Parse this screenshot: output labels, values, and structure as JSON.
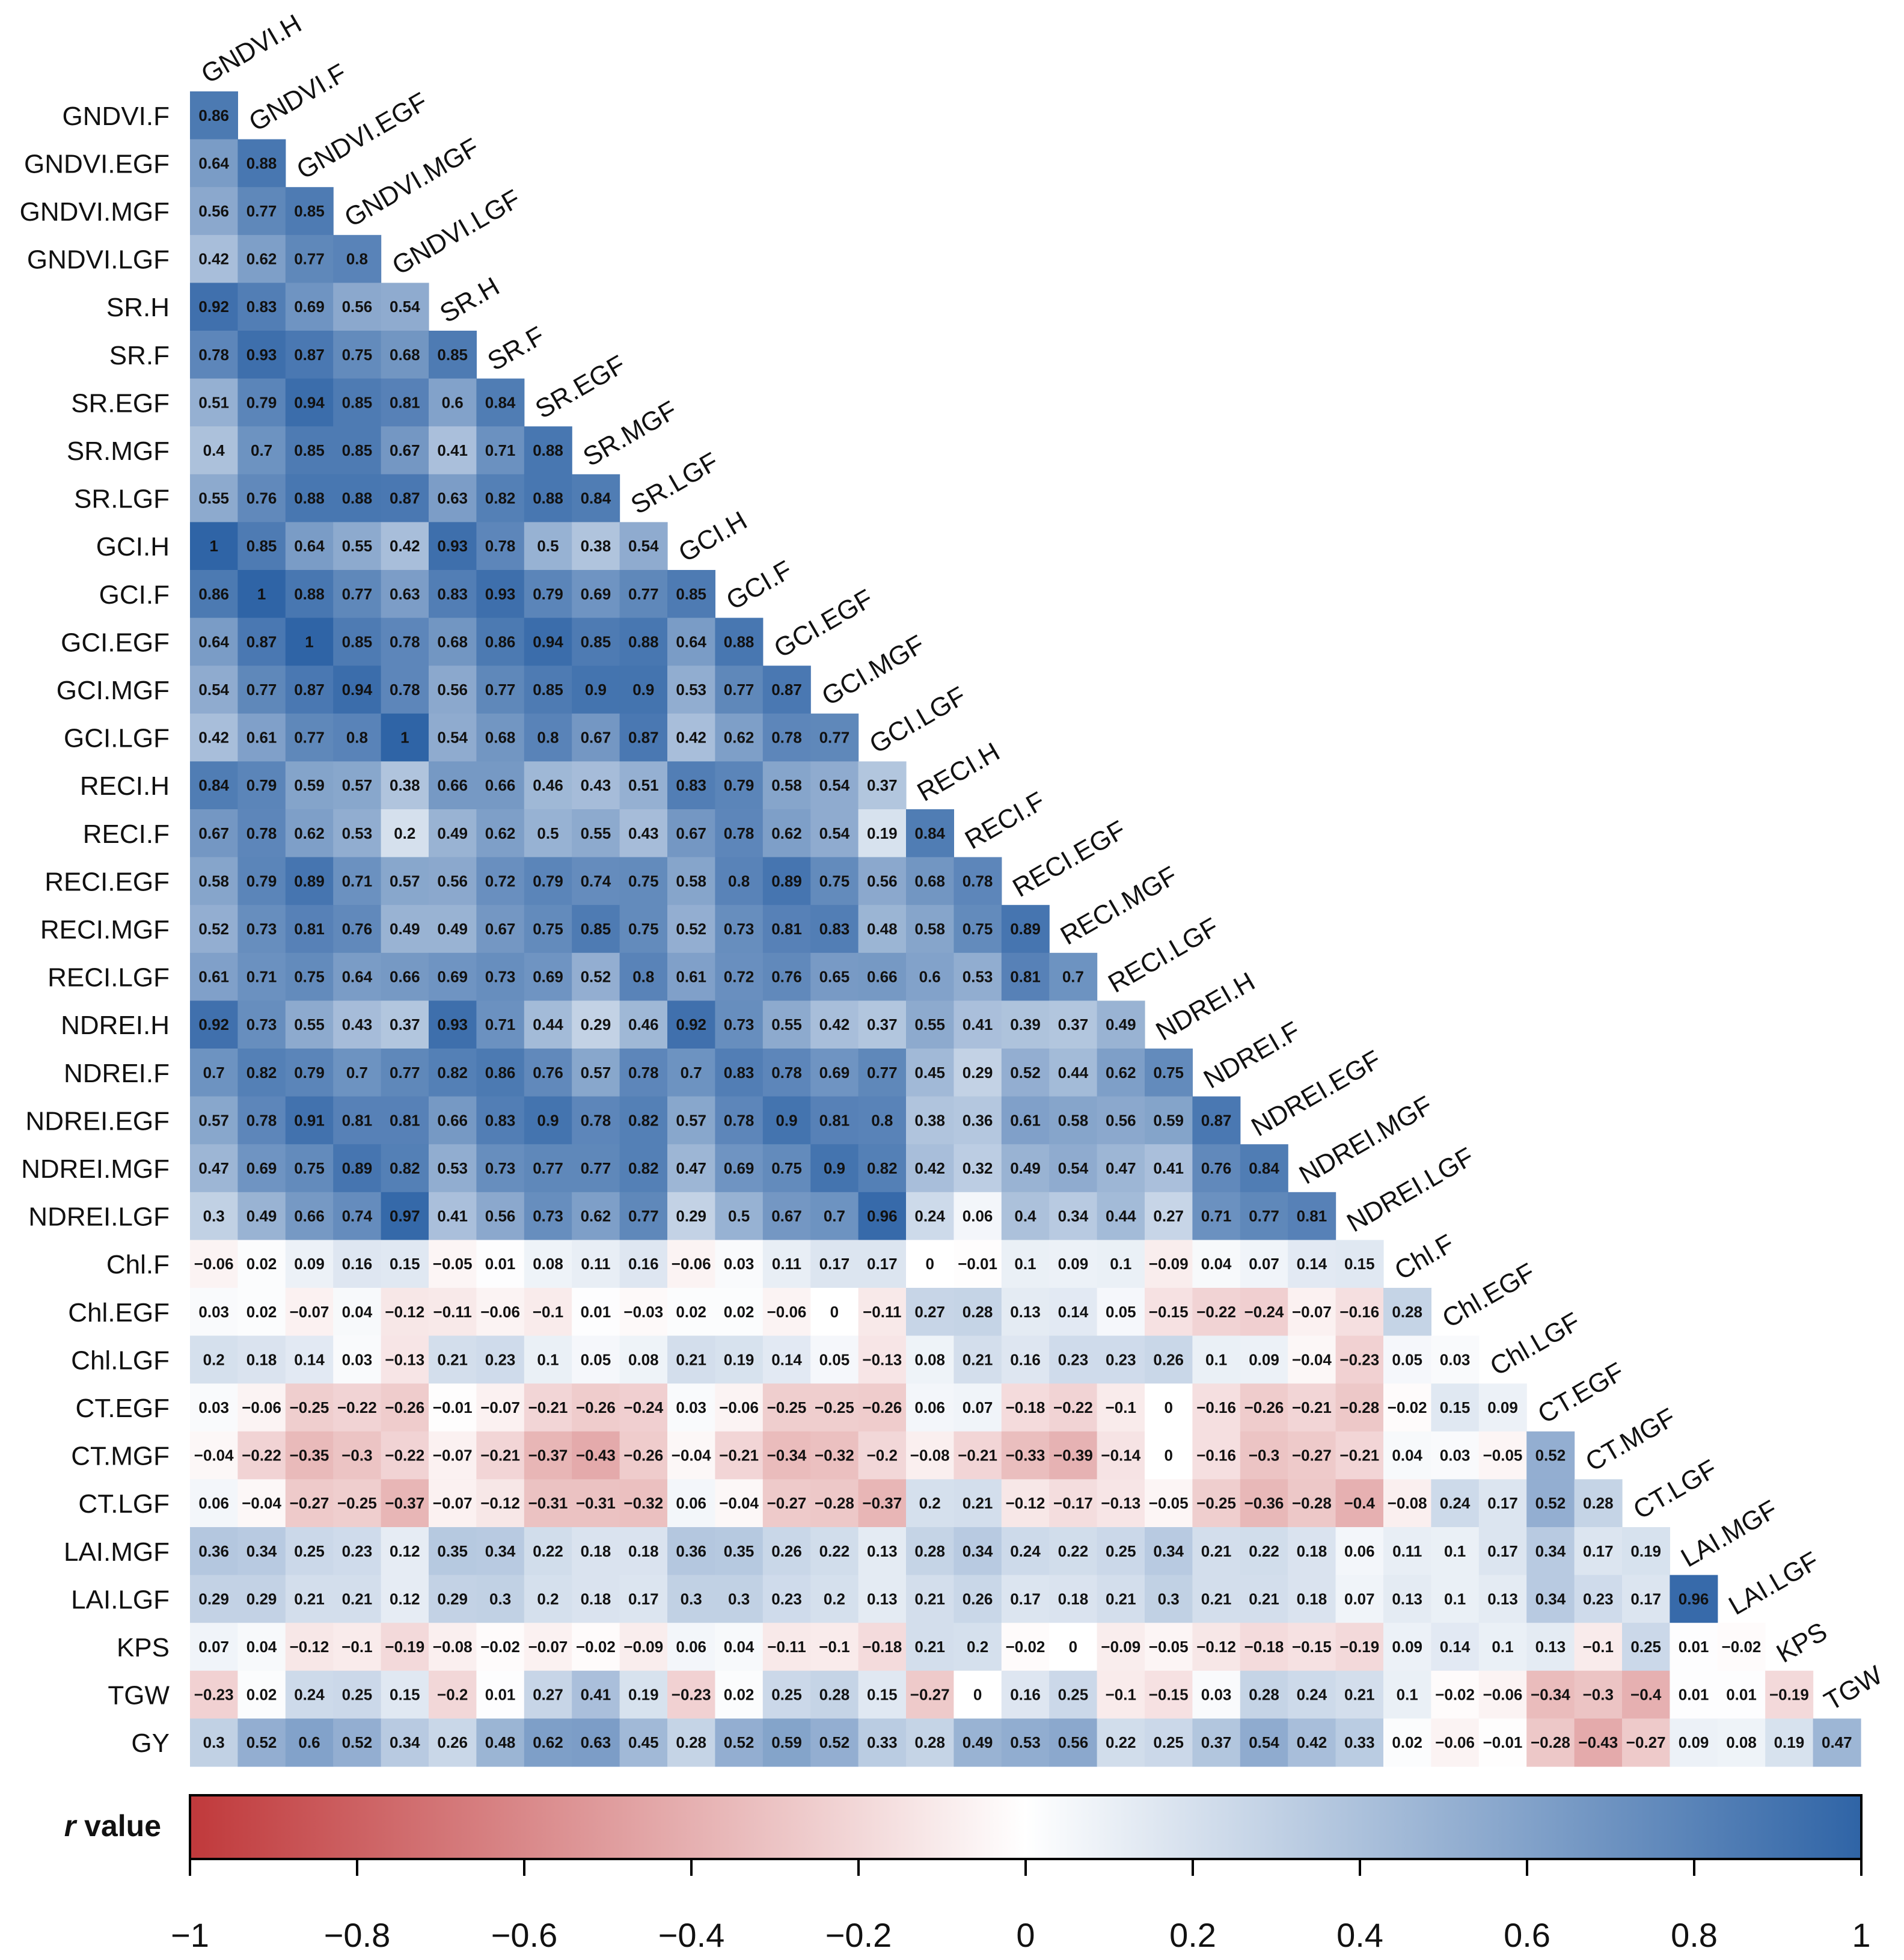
{
  "chart_data": {
    "type": "heatmap",
    "subtype": "correlation-lower-triangle",
    "row_labels": [
      "GNDVI.F",
      "GNDVI.EGF",
      "GNDVI.MGF",
      "GNDVI.LGF",
      "SR.H",
      "SR.F",
      "SR.EGF",
      "SR.MGF",
      "SR.LGF",
      "GCI.H",
      "GCI.F",
      "GCI.EGF",
      "GCI.MGF",
      "GCI.LGF",
      "RECI.H",
      "RECI.F",
      "RECI.EGF",
      "RECI.MGF",
      "RECI.LGF",
      "NDREI.H",
      "NDREI.F",
      "NDREI.EGF",
      "NDREI.MGF",
      "NDREI.LGF",
      "Chl.F",
      "Chl.EGF",
      "Chl.LGF",
      "CT.EGF",
      "CT.MGF",
      "CT.LGF",
      "LAI.MGF",
      "LAI.LGF",
      "KPS",
      "TGW",
      "GY"
    ],
    "column_labels": [
      "GNDVI.H",
      "GNDVI.F",
      "GNDVI.EGF",
      "GNDVI.MGF",
      "GNDVI.LGF",
      "SR.H",
      "SR.F",
      "SR.EGF",
      "SR.MGF",
      "SR.LGF",
      "GCI.H",
      "GCI.F",
      "GCI.EGF",
      "GCI.MGF",
      "GCI.LGF",
      "RECI.H",
      "RECI.F",
      "RECI.EGF",
      "RECI.MGF",
      "RECI.LGF",
      "NDREI.H",
      "NDREI.F",
      "NDREI.EGF",
      "NDREI.MGF",
      "NDREI.LGF",
      "Chl.F",
      "Chl.EGF",
      "Chl.LGF",
      "CT.EGF",
      "CT.MGF",
      "CT.LGF",
      "LAI.MGF",
      "LAI.LGF",
      "KPS",
      "TGW"
    ],
    "values": [
      [
        0.86
      ],
      [
        0.64,
        0.88
      ],
      [
        0.56,
        0.77,
        0.85
      ],
      [
        0.42,
        0.62,
        0.77,
        0.8
      ],
      [
        0.92,
        0.83,
        0.69,
        0.56,
        0.54
      ],
      [
        0.78,
        0.93,
        0.87,
        0.75,
        0.68,
        0.85
      ],
      [
        0.51,
        0.79,
        0.94,
        0.85,
        0.81,
        0.6,
        0.84
      ],
      [
        0.4,
        0.7,
        0.85,
        0.85,
        0.67,
        0.41,
        0.71,
        0.88
      ],
      [
        0.55,
        0.76,
        0.88,
        0.88,
        0.87,
        0.63,
        0.82,
        0.88,
        0.84
      ],
      [
        1,
        0.85,
        0.64,
        0.55,
        0.42,
        0.93,
        0.78,
        0.5,
        0.38,
        0.54
      ],
      [
        0.86,
        1,
        0.88,
        0.77,
        0.63,
        0.83,
        0.93,
        0.79,
        0.69,
        0.77,
        0.85
      ],
      [
        0.64,
        0.87,
        1,
        0.85,
        0.78,
        0.68,
        0.86,
        0.94,
        0.85,
        0.88,
        0.64,
        0.88
      ],
      [
        0.54,
        0.77,
        0.87,
        0.94,
        0.78,
        0.56,
        0.77,
        0.85,
        0.9,
        0.9,
        0.53,
        0.77,
        0.87
      ],
      [
        0.42,
        0.61,
        0.77,
        0.8,
        1,
        0.54,
        0.68,
        0.8,
        0.67,
        0.87,
        0.42,
        0.62,
        0.78,
        0.77
      ],
      [
        0.84,
        0.79,
        0.59,
        0.57,
        0.38,
        0.66,
        0.66,
        0.46,
        0.43,
        0.51,
        0.83,
        0.79,
        0.58,
        0.54,
        0.37
      ],
      [
        0.67,
        0.78,
        0.62,
        0.53,
        0.2,
        0.49,
        0.62,
        0.5,
        0.55,
        0.43,
        0.67,
        0.78,
        0.62,
        0.54,
        0.19,
        0.84
      ],
      [
        0.58,
        0.79,
        0.89,
        0.71,
        0.57,
        0.56,
        0.72,
        0.79,
        0.74,
        0.75,
        0.58,
        0.8,
        0.89,
        0.75,
        0.56,
        0.68,
        0.78
      ],
      [
        0.52,
        0.73,
        0.81,
        0.76,
        0.49,
        0.49,
        0.67,
        0.75,
        0.85,
        0.75,
        0.52,
        0.73,
        0.81,
        0.83,
        0.48,
        0.58,
        0.75,
        0.89
      ],
      [
        0.61,
        0.71,
        0.75,
        0.64,
        0.66,
        0.69,
        0.73,
        0.69,
        0.52,
        0.8,
        0.61,
        0.72,
        0.76,
        0.65,
        0.66,
        0.6,
        0.53,
        0.81,
        0.7
      ],
      [
        0.92,
        0.73,
        0.55,
        0.43,
        0.37,
        0.93,
        0.71,
        0.44,
        0.29,
        0.46,
        0.92,
        0.73,
        0.55,
        0.42,
        0.37,
        0.55,
        0.41,
        0.39,
        0.37,
        0.49
      ],
      [
        0.7,
        0.82,
        0.79,
        0.7,
        0.77,
        0.82,
        0.86,
        0.76,
        0.57,
        0.78,
        0.7,
        0.83,
        0.78,
        0.69,
        0.77,
        0.45,
        0.29,
        0.52,
        0.44,
        0.62,
        0.75
      ],
      [
        0.57,
        0.78,
        0.91,
        0.81,
        0.81,
        0.66,
        0.83,
        0.9,
        0.78,
        0.82,
        0.57,
        0.78,
        0.9,
        0.81,
        0.8,
        0.38,
        0.36,
        0.61,
        0.58,
        0.56,
        0.59,
        0.87
      ],
      [
        0.47,
        0.69,
        0.75,
        0.89,
        0.82,
        0.53,
        0.73,
        0.77,
        0.77,
        0.82,
        0.47,
        0.69,
        0.75,
        0.9,
        0.82,
        0.42,
        0.32,
        0.49,
        0.54,
        0.47,
        0.41,
        0.76,
        0.84
      ],
      [
        0.3,
        0.49,
        0.66,
        0.74,
        0.97,
        0.41,
        0.56,
        0.73,
        0.62,
        0.77,
        0.29,
        0.5,
        0.67,
        0.7,
        0.96,
        0.24,
        0.06,
        0.4,
        0.34,
        0.44,
        0.27,
        0.71,
        0.77,
        0.81
      ],
      [
        -0.06,
        0.02,
        0.09,
        0.16,
        0.15,
        -0.05,
        0.01,
        0.08,
        0.11,
        0.16,
        -0.06,
        0.03,
        0.11,
        0.17,
        0.17,
        0,
        -0.01,
        0.1,
        0.09,
        0.1,
        -0.09,
        0.04,
        0.07,
        0.14,
        0.15
      ],
      [
        0.03,
        0.02,
        -0.07,
        0.04,
        -0.12,
        -0.11,
        -0.06,
        -0.1,
        0.01,
        -0.03,
        0.02,
        0.02,
        -0.06,
        0,
        -0.11,
        0.27,
        0.28,
        0.13,
        0.14,
        0.05,
        -0.15,
        -0.22,
        -0.24,
        -0.07,
        -0.16,
        0.28
      ],
      [
        0.2,
        0.18,
        0.14,
        0.03,
        -0.13,
        0.21,
        0.23,
        0.1,
        0.05,
        0.08,
        0.21,
        0.19,
        0.14,
        0.05,
        -0.13,
        0.08,
        0.21,
        0.16,
        0.23,
        0.23,
        0.26,
        0.1,
        0.09,
        -0.04,
        -0.23,
        0.05,
        0.03
      ],
      [
        0.03,
        -0.06,
        -0.25,
        -0.22,
        -0.26,
        -0.01,
        -0.07,
        -0.21,
        -0.26,
        -0.24,
        0.03,
        -0.06,
        -0.25,
        -0.25,
        -0.26,
        0.06,
        0.07,
        -0.18,
        -0.22,
        -0.1,
        0,
        -0.16,
        -0.26,
        -0.21,
        -0.28,
        -0.02,
        0.15,
        0.09
      ],
      [
        -0.04,
        -0.22,
        -0.35,
        -0.3,
        -0.22,
        -0.07,
        -0.21,
        -0.37,
        -0.43,
        -0.26,
        -0.04,
        -0.21,
        -0.34,
        -0.32,
        -0.2,
        -0.08,
        -0.21,
        -0.33,
        -0.39,
        -0.14,
        0,
        -0.16,
        -0.3,
        -0.27,
        -0.21,
        0.04,
        0.03,
        -0.05,
        0.52
      ],
      [
        0.06,
        -0.04,
        -0.27,
        -0.25,
        -0.37,
        -0.07,
        -0.12,
        -0.31,
        -0.31,
        -0.32,
        0.06,
        -0.04,
        -0.27,
        -0.28,
        -0.37,
        0.2,
        0.21,
        -0.12,
        -0.17,
        -0.13,
        -0.05,
        -0.25,
        -0.36,
        -0.28,
        -0.4,
        -0.08,
        0.24,
        0.17,
        0.52,
        0.28
      ],
      [
        0.36,
        0.34,
        0.25,
        0.23,
        0.12,
        0.35,
        0.34,
        0.22,
        0.18,
        0.18,
        0.36,
        0.35,
        0.26,
        0.22,
        0.13,
        0.28,
        0.34,
        0.24,
        0.22,
        0.25,
        0.34,
        0.21,
        0.22,
        0.18,
        0.06,
        0.11,
        0.1,
        0.17,
        0.34,
        0.17,
        0.19
      ],
      [
        0.29,
        0.29,
        0.21,
        0.21,
        0.12,
        0.29,
        0.3,
        0.2,
        0.18,
        0.17,
        0.3,
        0.3,
        0.23,
        0.2,
        0.13,
        0.21,
        0.26,
        0.17,
        0.18,
        0.21,
        0.3,
        0.21,
        0.21,
        0.18,
        0.07,
        0.13,
        0.1,
        0.13,
        0.34,
        0.23,
        0.17,
        0.96
      ],
      [
        0.07,
        0.04,
        -0.12,
        -0.1,
        -0.19,
        -0.08,
        -0.02,
        -0.07,
        -0.02,
        -0.09,
        0.06,
        0.04,
        -0.11,
        -0.1,
        -0.18,
        0.21,
        0.2,
        -0.02,
        0,
        -0.09,
        -0.05,
        -0.12,
        -0.18,
        -0.15,
        -0.19,
        0.09,
        0.14,
        0.1,
        0.13,
        -0.1,
        0.25,
        0.01,
        -0.02
      ],
      [
        -0.23,
        0.02,
        0.24,
        0.25,
        0.15,
        -0.2,
        0.01,
        0.27,
        0.41,
        0.19,
        -0.23,
        0.02,
        0.25,
        0.28,
        0.15,
        -0.27,
        0,
        0.16,
        0.25,
        -0.1,
        -0.15,
        0.03,
        0.28,
        0.24,
        0.21,
        0.1,
        -0.02,
        -0.06,
        -0.34,
        -0.3,
        -0.4,
        0.01,
        0.01,
        -0.19
      ],
      [
        0.3,
        0.52,
        0.6,
        0.52,
        0.34,
        0.26,
        0.48,
        0.62,
        0.63,
        0.45,
        0.28,
        0.52,
        0.59,
        0.52,
        0.33,
        0.28,
        0.49,
        0.53,
        0.56,
        0.22,
        0.25,
        0.37,
        0.54,
        0.42,
        0.33,
        0.02,
        -0.06,
        -0.01,
        -0.28,
        -0.43,
        -0.27,
        0.09,
        0.08,
        0.19,
        0.47
      ]
    ],
    "color_scale": {
      "min": -1,
      "max": 1,
      "low_color": "#C0393B",
      "mid_color": "#FFFFFF",
      "high_color": "#2F64A6"
    },
    "legend_title_italic": "r",
    "legend_title_rest": " value",
    "legend_ticks": [
      -1,
      -0.8,
      -0.6,
      -0.4,
      -0.2,
      0,
      0.2,
      0.4,
      0.6,
      0.8,
      1
    ],
    "legend_tick_labels": [
      "−1",
      "−0.8",
      "−0.6",
      "−0.4",
      "−0.2",
      "0",
      "0.2",
      "0.4",
      "0.6",
      "0.8",
      "1"
    ]
  }
}
